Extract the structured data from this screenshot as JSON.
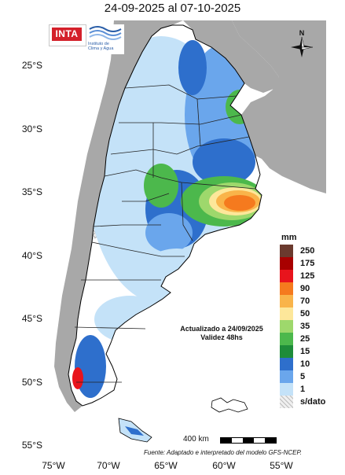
{
  "title": "24-09-2025 al 07-10-2025",
  "axes": {
    "latitudes": [
      "25°S",
      "30°S",
      "35°S",
      "40°S",
      "45°S",
      "50°S",
      "55°S"
    ],
    "longitudes": [
      "75°W",
      "70°W",
      "65°W",
      "60°W",
      "55°W"
    ]
  },
  "logos": {
    "inta": "INTA",
    "ica_line1": "Instituto de",
    "ica_line2": "Clima y Agua"
  },
  "compass_label": "N",
  "legend": {
    "unit": "mm",
    "levels": [
      {
        "label": "250",
        "color": "#6b3a2e"
      },
      {
        "label": "175",
        "color": "#a80000"
      },
      {
        "label": "125",
        "color": "#e8141c"
      },
      {
        "label": "90",
        "color": "#f57a1e"
      },
      {
        "label": "70",
        "color": "#f9b44a"
      },
      {
        "label": "50",
        "color": "#fde79a"
      },
      {
        "label": "35",
        "color": "#9ed86c"
      },
      {
        "label": "25",
        "color": "#4cb84c"
      },
      {
        "label": "15",
        "color": "#1e8c3a"
      },
      {
        "label": "10",
        "color": "#2e6fcc"
      },
      {
        "label": "5",
        "color": "#6aa6ec"
      },
      {
        "label": "1",
        "color": "#c4e2f8"
      },
      {
        "label": "s/dato",
        "color": "#dcdcdc"
      }
    ]
  },
  "update_note": {
    "line1": "Actualizado a 24/09/2025",
    "line2": "Validez 48hs"
  },
  "scale": {
    "label": "400 km"
  },
  "source": "Fuente: Adaptado e interpretado del modelo GFS-NCEP."
}
